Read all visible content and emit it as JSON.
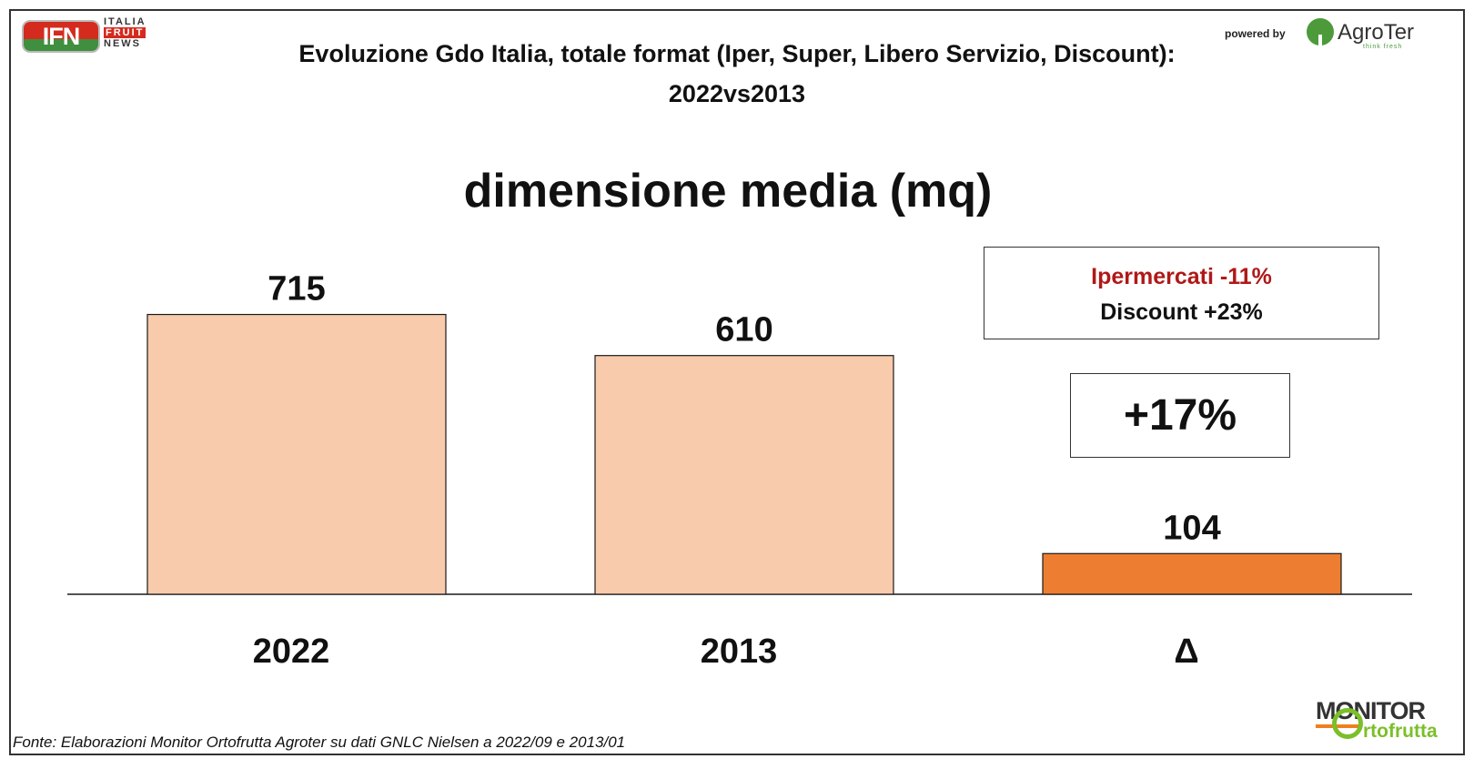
{
  "header": {
    "ifn_logo_text": "IFN",
    "ifn_words": [
      "ITALIA",
      "FRUIT",
      "NEWS"
    ],
    "powered_by": "powered by",
    "agroter_name": "AgroTer",
    "agroter_tagline": "think fresh"
  },
  "chart_data": {
    "type": "bar",
    "title": "Evoluzione Gdo Italia, totale format (Iper, Super, Libero Servizio, Discount):",
    "title_line2": "2022vs2013",
    "subtitle": "dimensione media (mq)",
    "categories": [
      "2022",
      "2013",
      "Δ"
    ],
    "values": [
      715,
      610,
      104
    ],
    "data_labels": [
      "715",
      "610",
      "104"
    ],
    "colors": [
      "#f8cbad",
      "#f8cbad",
      "#ed7d31"
    ],
    "bar_stroke": "#1a1a1a",
    "grid": false,
    "legend": "none",
    "ylim": [
      0,
      800
    ],
    "xlabel": "",
    "ylabel": ""
  },
  "annotations": {
    "info_red": "Ipermercati -11%",
    "info_black": "Discount +23%",
    "change_pct": "+17%"
  },
  "footer": {
    "source": "Fonte: Elaborazioni Monitor Ortofrutta Agroter su dati GNLC Nielsen a 2022/09 e 2013/01",
    "monitor_word": "MONITOR",
    "monitor_sub": "rtofrutta"
  }
}
